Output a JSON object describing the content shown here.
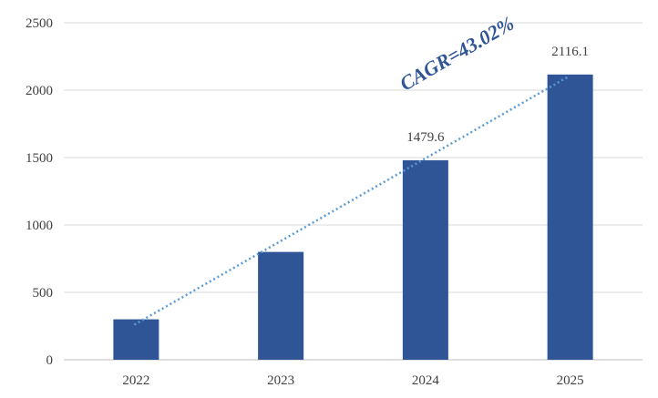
{
  "chart_data": {
    "type": "bar",
    "title": "",
    "xlabel": "",
    "ylabel": "",
    "categories": [
      "2022",
      "2023",
      "2024",
      "2025"
    ],
    "values": [
      300,
      800,
      1479.6,
      2116.1
    ],
    "data_labels": [
      "",
      "",
      "1479.6",
      "2116.1"
    ],
    "ylim": [
      0,
      2500
    ],
    "yticks": [
      "0",
      "500",
      "1000",
      "1500",
      "2000",
      "2500"
    ],
    "grid": true,
    "legend": "none",
    "bar_color": "#2F5597",
    "trendline": {
      "style": "dotted",
      "color": "#5B9BD5",
      "start_value": 260,
      "end_value": 2100
    },
    "annotation": "CAGR=43.02%"
  }
}
